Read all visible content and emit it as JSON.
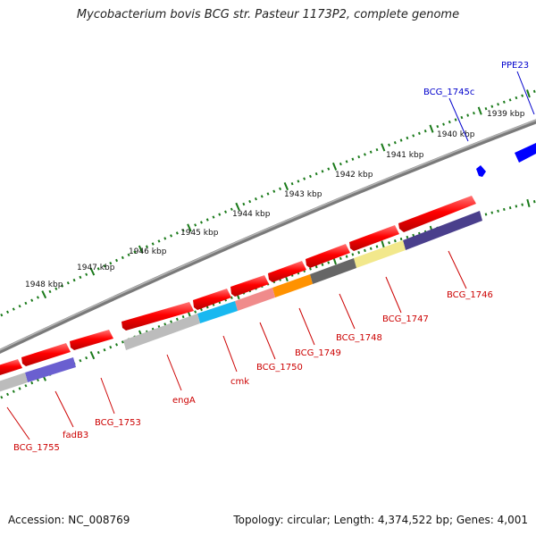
{
  "title": "Mycobacterium bovis BCG str. Pasteur 1173P2, complete genome",
  "footer": {
    "accession": "Accession: NC_008769",
    "summary": "Topology: circular; Length: 4,374,522 bp; Genes: 4,001"
  },
  "kbp_labels": [
    "1939 kbp",
    "1940 kbp",
    "1941 kbp",
    "1942 kbp",
    "1943 kbp",
    "1944 kbp",
    "1945 kbp",
    "1946 kbp",
    "1947 kbp",
    "1948 kbp"
  ],
  "genes_below": [
    {
      "label": "BCG_1746",
      "color": "#cc0000"
    },
    {
      "label": "BCG_1747",
      "color": "#cc0000"
    },
    {
      "label": "BCG_1748",
      "color": "#cc0000"
    },
    {
      "label": "BCG_1749",
      "color": "#cc0000"
    },
    {
      "label": "BCG_1750",
      "color": "#cc0000"
    },
    {
      "label": "cmk",
      "color": "#cc0000"
    },
    {
      "label": "engA",
      "color": "#cc0000"
    },
    {
      "label": "BCG_1753",
      "color": "#cc0000"
    },
    {
      "label": "fadB3",
      "color": "#cc0000"
    },
    {
      "label": "BCG_1755",
      "color": "#cc0000"
    }
  ],
  "genes_above": [
    {
      "label": "BCG_1745c",
      "color": "#0000cc"
    },
    {
      "label": "PPE23",
      "color": "#0000cc"
    }
  ],
  "colors": {
    "gene_red": "#ff0000",
    "gene_blue": "#0000ff",
    "backbone": "#808080",
    "tick": "#1a7a1a"
  }
}
